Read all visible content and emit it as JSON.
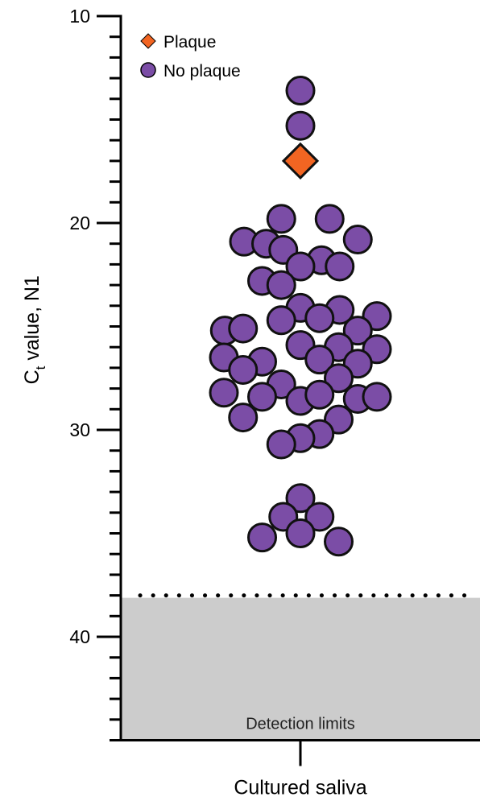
{
  "chart_data": {
    "type": "scatter",
    "title": "",
    "xlabel": "Cultured saliva",
    "ylabel": {
      "main": "C",
      "subscript": "t",
      "rest": " value, N1"
    },
    "y_axis": {
      "min": 10,
      "max": 45,
      "inverted": true,
      "major_ticks": [
        10,
        20,
        30,
        40
      ],
      "minor_step": 1
    },
    "x_categories": [
      "Cultured saliva"
    ],
    "legend": {
      "placement": "top-left",
      "entries": [
        {
          "name": "Plaque",
          "marker": "diamond",
          "color": "#F26522"
        },
        {
          "name": "No plaque",
          "marker": "circle",
          "color": "#7B4DA6"
        }
      ]
    },
    "detection_limit": {
      "value": 38,
      "label": "Detection limits",
      "shade_color": "#CCCCCC"
    },
    "series": [
      {
        "name": "Plaque",
        "marker": "diamond",
        "color": "#F26522",
        "points": [
          {
            "x": 0.0,
            "y": 17.0
          }
        ]
      },
      {
        "name": "No plaque",
        "marker": "circle",
        "color": "#7B4DA6",
        "points": [
          {
            "x": 0.0,
            "y": 13.6
          },
          {
            "x": 0.0,
            "y": 15.3
          },
          {
            "x": -0.95,
            "y": 19.8
          },
          {
            "x": 1.45,
            "y": 19.8
          },
          {
            "x": -2.8,
            "y": 20.9
          },
          {
            "x": -1.7,
            "y": 21.0
          },
          {
            "x": 2.85,
            "y": 20.8
          },
          {
            "x": -0.85,
            "y": 21.3
          },
          {
            "x": 1.05,
            "y": 21.8
          },
          {
            "x": 0.0,
            "y": 22.1
          },
          {
            "x": 1.95,
            "y": 22.1
          },
          {
            "x": -1.9,
            "y": 22.8
          },
          {
            "x": -0.95,
            "y": 23.0
          },
          {
            "x": 0.0,
            "y": 24.1
          },
          {
            "x": 1.95,
            "y": 24.2
          },
          {
            "x": 0.95,
            "y": 24.6
          },
          {
            "x": -0.95,
            "y": 24.7
          },
          {
            "x": 3.8,
            "y": 24.5
          },
          {
            "x": -3.75,
            "y": 25.2
          },
          {
            "x": -2.85,
            "y": 25.1
          },
          {
            "x": 2.85,
            "y": 25.2
          },
          {
            "x": 0.0,
            "y": 25.9
          },
          {
            "x": 1.9,
            "y": 26.0
          },
          {
            "x": 3.8,
            "y": 26.1
          },
          {
            "x": -3.8,
            "y": 26.5
          },
          {
            "x": -1.9,
            "y": 26.7
          },
          {
            "x": 0.95,
            "y": 26.6
          },
          {
            "x": 2.85,
            "y": 26.8
          },
          {
            "x": -2.85,
            "y": 27.1
          },
          {
            "x": -0.95,
            "y": 27.8
          },
          {
            "x": 1.9,
            "y": 27.5
          },
          {
            "x": -3.8,
            "y": 28.2
          },
          {
            "x": -1.9,
            "y": 28.4
          },
          {
            "x": 0.0,
            "y": 28.6
          },
          {
            "x": 0.95,
            "y": 28.3
          },
          {
            "x": 2.85,
            "y": 28.5
          },
          {
            "x": 3.8,
            "y": 28.4
          },
          {
            "x": -2.85,
            "y": 29.4
          },
          {
            "x": 1.9,
            "y": 29.5
          },
          {
            "x": 0.95,
            "y": 30.2
          },
          {
            "x": 0.0,
            "y": 30.4
          },
          {
            "x": -0.95,
            "y": 30.7
          },
          {
            "x": 0.0,
            "y": 33.3
          },
          {
            "x": -0.85,
            "y": 34.2
          },
          {
            "x": 0.95,
            "y": 34.2
          },
          {
            "x": 0.0,
            "y": 35.0
          },
          {
            "x": -1.9,
            "y": 35.2
          },
          {
            "x": 1.9,
            "y": 35.4
          }
        ]
      }
    ]
  }
}
